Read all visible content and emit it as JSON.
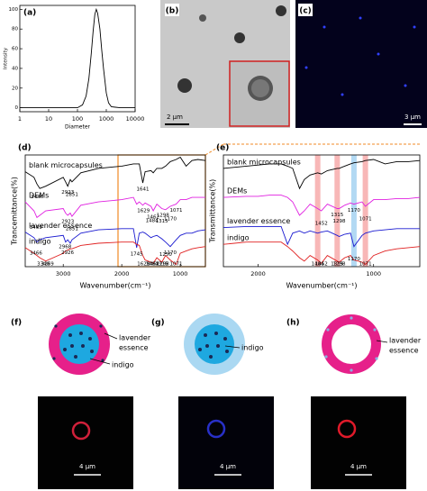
{
  "chart_data": [
    {
      "type": "line",
      "label": "(a)",
      "xscale": "log",
      "color": "#000000",
      "xlabel": "Diameter",
      "ylabel": "Intensity",
      "x": [
        1,
        10,
        100,
        150,
        200,
        250,
        300,
        350,
        400,
        450,
        500,
        600,
        700,
        800,
        1000,
        1200,
        1500,
        3000,
        10000
      ],
      "values": [
        0,
        0,
        0,
        3,
        12,
        30,
        55,
        78,
        95,
        100,
        96,
        80,
        58,
        40,
        15,
        5,
        1,
        0,
        0
      ],
      "xlim": [
        1,
        10000
      ],
      "xticks": [
        1,
        10,
        100,
        1000,
        10000
      ],
      "ylim": [
        -4,
        104
      ],
      "yticks": [
        0,
        20,
        40,
        60,
        80,
        100
      ]
    },
    {
      "type": "line",
      "label": "(d)",
      "xlabel": "Wavenumber(cm⁻¹)",
      "ylabel": "Trancemittance(%)",
      "x": [
        3650,
        3500,
        3450,
        3400,
        3300,
        3000,
        2960,
        2923,
        2880,
        2851,
        2700,
        2400,
        2000,
        1800,
        1745,
        1700,
        1641,
        1600,
        1500,
        1462,
        1400,
        1315,
        1250,
        1170,
        1071,
        1000,
        900,
        800,
        700,
        570
      ],
      "series": [
        {
          "name": "blank microcapsules",
          "color": "#000000",
          "values": [
            85,
            80,
            74,
            70,
            72,
            80,
            76,
            72,
            78,
            76,
            84,
            88,
            90,
            92,
            92,
            92,
            75,
            85,
            86,
            84,
            88,
            88,
            90,
            94,
            96,
            98,
            90,
            95,
            96,
            95
          ]
        },
        {
          "name": "DEMs",
          "color": "#e020e0",
          "values": [
            58,
            50,
            44,
            46,
            50,
            52,
            48,
            46,
            48,
            45,
            55,
            58,
            60,
            62,
            56,
            58,
            55,
            57,
            54,
            50,
            56,
            52,
            51,
            54,
            56,
            60,
            60,
            62,
            62,
            62
          ]
        },
        {
          "name": "lavender essence",
          "color": "#1a1ad0",
          "values": [
            31,
            26,
            22,
            24,
            26,
            28,
            22,
            24,
            21,
            24,
            30,
            33,
            34,
            34,
            17,
            30,
            31,
            30,
            26,
            27,
            28,
            25,
            22,
            18,
            24,
            28,
            30,
            30,
            32,
            33
          ]
        },
        {
          "name": "indigo",
          "color": "#e02020",
          "values": [
            17,
            12,
            10,
            8,
            5,
            12,
            14,
            15,
            16,
            16,
            19,
            21,
            22,
            22,
            20,
            19,
            10,
            6,
            4,
            3,
            8,
            4,
            10,
            6,
            2,
            12,
            14,
            16,
            17,
            18
          ]
        }
      ],
      "xlim": [
        3650,
        570
      ],
      "xticks": [
        3000,
        2000,
        1000
      ],
      "ylim": [
        0,
        100
      ],
      "annotations": [
        {
          "x": 3446,
          "series": 0
        },
        {
          "x": 2923,
          "series": 0
        },
        {
          "x": 2851,
          "series": 0
        },
        {
          "x": 1641,
          "series": 0
        },
        {
          "x": 3469,
          "series": 1
        },
        {
          "x": 2923,
          "series": 1
        },
        {
          "x": 2851,
          "series": 1
        },
        {
          "x": 1629,
          "series": 1
        },
        {
          "x": 1484,
          "series": 1
        },
        {
          "x": 1462,
          "series": 1
        },
        {
          "x": 1315,
          "series": 1
        },
        {
          "x": 1298,
          "series": 1
        },
        {
          "x": 1170,
          "series": 1
        },
        {
          "x": 1071,
          "series": 1
        },
        {
          "x": 3466,
          "series": 2
        },
        {
          "x": 2968,
          "series": 2
        },
        {
          "x": 2926,
          "series": 2
        },
        {
          "x": 1745,
          "series": 2
        },
        {
          "x": 1250,
          "series": 2
        },
        {
          "x": 1170,
          "series": 2
        },
        {
          "x": 3269,
          "series": 3
        },
        {
          "x": 3340,
          "series": 3
        },
        {
          "x": 1629,
          "series": 3
        },
        {
          "x": 1484,
          "series": 3
        },
        {
          "x": 1462,
          "series": 3
        },
        {
          "x": 1315,
          "series": 3
        },
        {
          "x": 1298,
          "series": 3
        },
        {
          "x": 1071,
          "series": 3
        }
      ]
    },
    {
      "type": "line",
      "label": "(e)",
      "xlabel": "Wavenumber(cm⁻¹)",
      "ylabel": "Transmittance(%)",
      "x": [
        2300,
        2100,
        2000,
        1900,
        1800,
        1745,
        1700,
        1641,
        1600,
        1550,
        1484,
        1452,
        1400,
        1315,
        1298,
        1250,
        1200,
        1170,
        1100,
        1071,
        1000,
        900,
        800,
        700,
        600
      ],
      "series": [
        {
          "name": "blank microcapsules",
          "color": "#000000",
          "values": [
            88,
            90,
            91,
            92,
            92,
            90,
            88,
            70,
            78,
            82,
            84,
            83,
            86,
            88,
            88,
            90,
            92,
            93,
            94,
            95,
            96,
            92,
            94,
            94,
            95
          ]
        },
        {
          "name": "DEMs",
          "color": "#e020e0",
          "values": [
            62,
            63,
            63,
            64,
            64,
            62,
            58,
            46,
            50,
            56,
            52,
            50,
            56,
            52,
            52,
            55,
            57,
            56,
            58,
            54,
            60,
            60,
            61,
            61,
            62
          ]
        },
        {
          "name": "lavender essence",
          "color": "#1a1ad0",
          "values": [
            35,
            36,
            36,
            36,
            36,
            20,
            30,
            32,
            30,
            32,
            30,
            31,
            32,
            28,
            27,
            29,
            30,
            18,
            28,
            30,
            32,
            33,
            34,
            34,
            34
          ]
        },
        {
          "name": "indigo",
          "color": "#e02020",
          "values": [
            20,
            22,
            22,
            22,
            22,
            18,
            14,
            8,
            5,
            10,
            6,
            3,
            10,
            5,
            4,
            8,
            10,
            6,
            4,
            2,
            10,
            14,
            16,
            17,
            18
          ]
        }
      ],
      "xlim": [
        2300,
        600
      ],
      "xticks": [
        2000,
        1000
      ],
      "ylim": [
        0,
        100
      ],
      "bands": [
        {
          "x": 1484,
          "color": "#f6a5a5"
        },
        {
          "x": 1315,
          "color": "#f6a5a5"
        },
        {
          "x": 1170,
          "color": "#9fd0f0"
        },
        {
          "x": 1071,
          "color": "#f6a5a5"
        }
      ],
      "annotations": [
        {
          "x": 1452,
          "series": 1
        },
        {
          "x": 1315,
          "series": 1
        },
        {
          "x": 1298,
          "series": 1
        },
        {
          "x": 1170,
          "series": 1
        },
        {
          "x": 1071,
          "series": 1
        },
        {
          "x": 1170,
          "series": 2
        },
        {
          "x": 1484,
          "series": 3
        },
        {
          "x": 1452,
          "series": 3
        },
        {
          "x": 1315,
          "series": 3
        },
        {
          "x": 1298,
          "series": 3
        },
        {
          "x": 1071,
          "series": 3
        }
      ]
    }
  ],
  "images": [
    {
      "label": "(b)",
      "scale": "2 μm"
    },
    {
      "label": "(c)",
      "scale": "3 μm"
    }
  ],
  "schematics": [
    {
      "label": "(f)",
      "callouts": [
        [
          "lavender",
          "essence"
        ],
        [
          "indigo"
        ]
      ],
      "scale": "4 μm"
    },
    {
      "label": "(g)",
      "callouts": [
        [
          "indigo"
        ]
      ],
      "scale": "4 μm"
    },
    {
      "label": "(h)",
      "callouts": [
        [
          "lavender",
          "essence"
        ]
      ],
      "scale": "4 μm"
    }
  ]
}
